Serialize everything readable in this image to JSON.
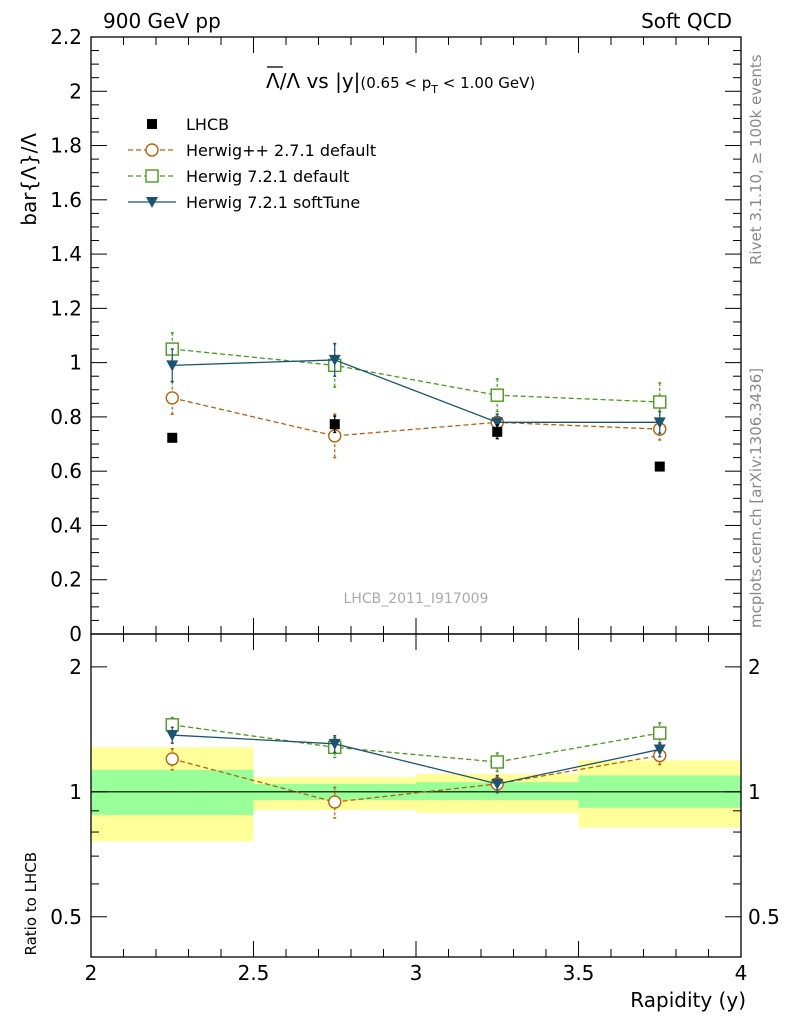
{
  "header": {
    "left_label": "900 GeV pp",
    "right_label": "Soft QCD"
  },
  "side_labels": {
    "rivet": "Rivet 3.1.10, ≥ 100k events",
    "mcplots": "mcplots.cern.ch [arXiv:1306.3436]"
  },
  "chart_data": {
    "type": "scatter",
    "title_main": "Λ/Λ vs |y|",
    "title_overline_prefix": "Λ",
    "title_rest": "/Λ vs |y|",
    "title_sub_prefix": "(0.65 < p",
    "title_sub_index": "T",
    "title_sub_suffix": " < 1.00 GeV)",
    "ylabel": "bar{Λ}/Λ",
    "xlabel": "Rapidity (y)",
    "ratio_ylabel": "Ratio to LHCB",
    "analysis_id": "LHCB_2011_I917009",
    "xlim": [
      2,
      4
    ],
    "ylim": [
      0,
      2.2
    ],
    "ratio_ylim": [
      0.4,
      2.4
    ],
    "ratio_log": true,
    "x_ticks": [
      "2",
      "2.5",
      "3",
      "3.5",
      "4"
    ],
    "y_ticks": [
      "0",
      "0.2",
      "0.4",
      "0.6",
      "0.8",
      "1",
      "1.2",
      "1.4",
      "1.6",
      "1.8",
      "2",
      "2.2"
    ],
    "ratio_ticks": [
      "0.5",
      "1",
      "2"
    ],
    "bins": [
      [
        2.0,
        2.5
      ],
      [
        2.5,
        3.0
      ],
      [
        3.0,
        3.5
      ],
      [
        3.5,
        4.0
      ]
    ],
    "x": [
      2.25,
      2.75,
      3.25,
      3.75
    ],
    "series": [
      {
        "name": "LHCB",
        "style": "data",
        "color": "#000000",
        "values": [
          0.723,
          0.773,
          0.745,
          0.617
        ],
        "errors": [
          0.01,
          0.03,
          0.025,
          0.01
        ]
      },
      {
        "name": "Herwig++ 2.7.1 default",
        "style": "open-circle",
        "color": "#b8600b",
        "values": [
          0.87,
          0.73,
          0.78,
          0.755
        ],
        "errors": [
          0.06,
          0.08,
          0.03,
          0.04
        ],
        "ratio": [
          1.2,
          0.945,
          1.045,
          1.223
        ],
        "ratio_errors": [
          0.07,
          0.08,
          0.04,
          0.06
        ]
      },
      {
        "name": "Herwig 7.2.1 default",
        "style": "open-square",
        "color": "#4a9a1a",
        "values": [
          1.05,
          0.99,
          0.88,
          0.855
        ],
        "errors": [
          0.06,
          0.08,
          0.06,
          0.07
        ],
        "ratio": [
          1.45,
          1.28,
          1.18,
          1.385
        ],
        "ratio_errors": [
          0.06,
          0.07,
          0.06,
          0.08
        ]
      },
      {
        "name": "Herwig 7.2.1 softTune",
        "style": "filled-triangle",
        "color": "#1b5470",
        "values": [
          0.99,
          1.01,
          0.78,
          0.78
        ],
        "errors": [
          0.06,
          0.06,
          0.03,
          0.04
        ],
        "ratio": [
          1.37,
          1.305,
          1.045,
          1.265
        ],
        "ratio_errors": [
          0.06,
          0.06,
          0.05,
          0.05
        ]
      }
    ],
    "ratio_bands": {
      "inner": [
        [
          0.88,
          1.13
        ],
        [
          0.955,
          1.045
        ],
        [
          0.955,
          1.055
        ],
        [
          0.915,
          1.095
        ]
      ],
      "outer": [
        [
          0.76,
          1.28
        ],
        [
          0.905,
          1.085
        ],
        [
          0.89,
          1.105
        ],
        [
          0.82,
          1.19
        ]
      ],
      "inner_color": "#99ff99",
      "outer_color": "#ffff99"
    }
  }
}
